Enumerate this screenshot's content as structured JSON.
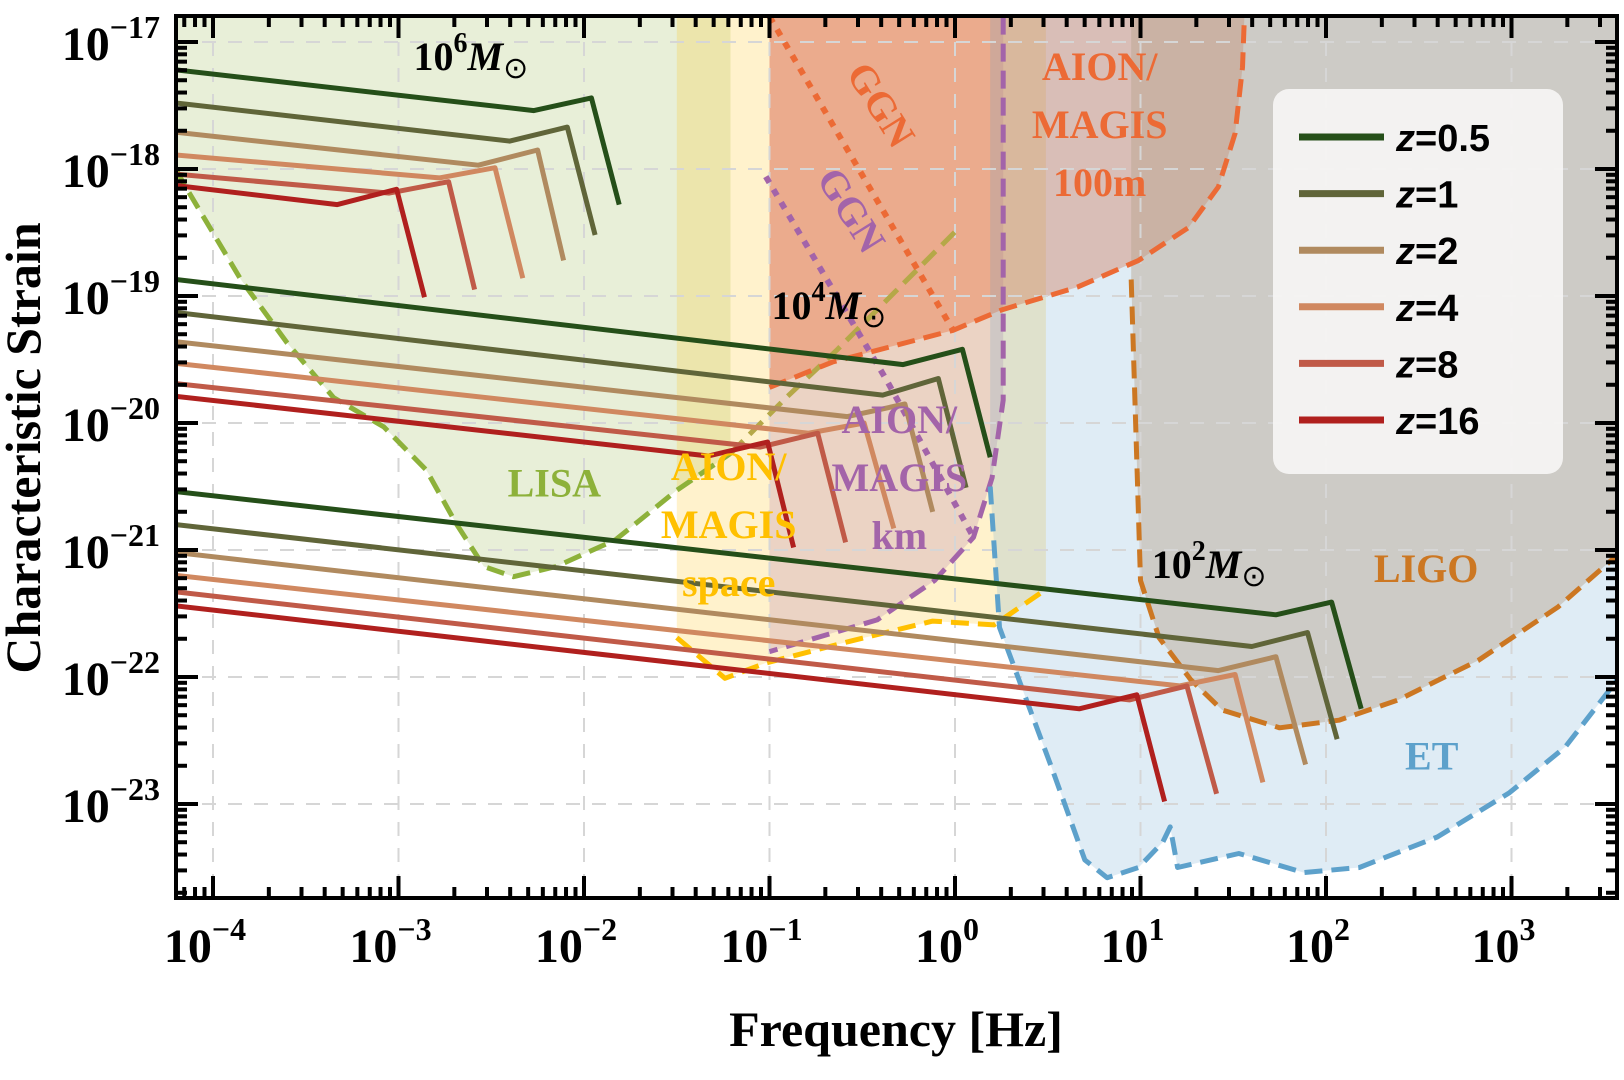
{
  "chart_data": {
    "type": "line",
    "title": "",
    "xlabel": "Frequency [Hz]",
    "ylabel": "Characteristic Strain",
    "xscale": "log",
    "yscale": "log",
    "xlim_log10": [
      -4.2,
      3.57
    ],
    "ylim_log10": [
      -23.74,
      -16.8
    ],
    "grid": true,
    "x_ticks": [
      {
        "exp": -4,
        "base": "10",
        "sup": "−4"
      },
      {
        "exp": -3,
        "base": "10",
        "sup": "−3"
      },
      {
        "exp": -2,
        "base": "10",
        "sup": "−2"
      },
      {
        "exp": -1,
        "base": "10",
        "sup": "−1"
      },
      {
        "exp": 0,
        "base": "10",
        "sup": "0"
      },
      {
        "exp": 1,
        "base": "10",
        "sup": "1"
      },
      {
        "exp": 2,
        "base": "10",
        "sup": "2"
      },
      {
        "exp": 3,
        "base": "10",
        "sup": "3"
      }
    ],
    "y_ticks": [
      {
        "exp": -17,
        "base": "10",
        "sup": "−17"
      },
      {
        "exp": -18,
        "base": "10",
        "sup": "−18"
      },
      {
        "exp": -19,
        "base": "10",
        "sup": "−19"
      },
      {
        "exp": -20,
        "base": "10",
        "sup": "−20"
      },
      {
        "exp": -21,
        "base": "10",
        "sup": "−21"
      },
      {
        "exp": -22,
        "base": "10",
        "sup": "−22"
      },
      {
        "exp": -23,
        "base": "10",
        "sup": "−23"
      }
    ],
    "legend": {
      "placement": "top-right",
      "entries": [
        {
          "label": "z = 0.5",
          "color": "#254f19"
        },
        {
          "label": "z = 1",
          "color": "#606539"
        },
        {
          "label": "z = 2",
          "color": "#b08a5f"
        },
        {
          "label": "z = 4",
          "color": "#d08860"
        },
        {
          "label": "z = 8",
          "color": "#c05a48"
        },
        {
          "label": "z = 16",
          "color": "#b0201e"
        }
      ]
    },
    "series_note": "points are [log10 f (Hz), log10 h_c]; each track = inspiral start, knee, merger peak, ringdown end",
    "series": [
      {
        "name": "1e6 Msun z=0.5",
        "mass": "10^6",
        "z": 0.5,
        "color": "#254f19",
        "points": [
          [
            -4.2,
            -17.22
          ],
          [
            -2.27,
            -17.54
          ],
          [
            -1.96,
            -17.44
          ],
          [
            -1.81,
            -18.28
          ]
        ]
      },
      {
        "name": "1e6 Msun z=1",
        "mass": "10^6",
        "z": 1,
        "color": "#606539",
        "points": [
          [
            -4.2,
            -17.48
          ],
          [
            -2.4,
            -17.78
          ],
          [
            -2.09,
            -17.67
          ],
          [
            -1.94,
            -18.52
          ]
        ]
      },
      {
        "name": "1e6 Msun z=2",
        "mass": "10^6",
        "z": 2,
        "color": "#b08a5f",
        "points": [
          [
            -4.2,
            -17.71
          ],
          [
            -2.57,
            -17.97
          ],
          [
            -2.25,
            -17.85
          ],
          [
            -2.11,
            -18.72
          ]
        ]
      },
      {
        "name": "1e6 Msun z=4",
        "mass": "10^6",
        "z": 4,
        "color": "#d08860",
        "points": [
          [
            -4.2,
            -17.89
          ],
          [
            -2.78,
            -18.07
          ],
          [
            -2.48,
            -17.99
          ],
          [
            -2.33,
            -18.86
          ]
        ]
      },
      {
        "name": "1e6 Msun z=8",
        "mass": "10^6",
        "z": 8,
        "color": "#c05a48",
        "points": [
          [
            -4.2,
            -18.04
          ],
          [
            -3.05,
            -18.19
          ],
          [
            -2.73,
            -18.1
          ],
          [
            -2.59,
            -18.95
          ]
        ]
      },
      {
        "name": "1e6 Msun z=16",
        "mass": "10^6",
        "z": 16,
        "color": "#b0201e",
        "points": [
          [
            -4.2,
            -18.13
          ],
          [
            -3.33,
            -18.28
          ],
          [
            -3.01,
            -18.16
          ],
          [
            -2.86,
            -19.01
          ]
        ]
      },
      {
        "name": "1e4 Msun z=0.5",
        "mass": "10^4",
        "z": 0.5,
        "color": "#254f19",
        "points": [
          [
            -4.2,
            -18.87
          ],
          [
            -0.28,
            -19.54
          ],
          [
            0.04,
            -19.42
          ],
          [
            0.19,
            -20.27
          ]
        ]
      },
      {
        "name": "1e4 Msun z=1",
        "mass": "10^4",
        "z": 1,
        "color": "#606539",
        "points": [
          [
            -4.2,
            -19.13
          ],
          [
            -0.39,
            -19.78
          ],
          [
            -0.09,
            -19.65
          ],
          [
            0.06,
            -20.51
          ]
        ]
      },
      {
        "name": "1e4 Msun z=2",
        "mass": "10^4",
        "z": 2,
        "color": "#b08a5f",
        "points": [
          [
            -4.2,
            -19.36
          ],
          [
            -0.58,
            -19.95
          ],
          [
            -0.27,
            -19.85
          ],
          [
            -0.12,
            -20.7
          ]
        ]
      },
      {
        "name": "1e4 Msun z=4",
        "mass": "10^4",
        "z": 4,
        "color": "#d08860",
        "points": [
          [
            -4.2,
            -19.53
          ],
          [
            -0.79,
            -20.08
          ],
          [
            -0.49,
            -20.0
          ],
          [
            -0.33,
            -20.83
          ]
        ]
      },
      {
        "name": "1e4 Msun z=8",
        "mass": "10^4",
        "z": 8,
        "color": "#c05a48",
        "points": [
          [
            -4.2,
            -19.69
          ],
          [
            -1.05,
            -20.19
          ],
          [
            -0.74,
            -20.08
          ],
          [
            -0.59,
            -20.94
          ]
        ]
      },
      {
        "name": "1e4 Msun z=16",
        "mass": "10^4",
        "z": 16,
        "color": "#b0201e",
        "points": [
          [
            -4.2,
            -19.79
          ],
          [
            -1.33,
            -20.26
          ],
          [
            -1.01,
            -20.15
          ],
          [
            -0.87,
            -20.98
          ]
        ]
      },
      {
        "name": "1e2 Msun z=0.5",
        "mass": "10^2",
        "z": 0.5,
        "color": "#254f19",
        "points": [
          [
            -4.2,
            -20.54
          ],
          [
            1.73,
            -21.51
          ],
          [
            2.03,
            -21.41
          ],
          [
            2.19,
            -22.25
          ]
        ]
      },
      {
        "name": "1e2 Msun z=1",
        "mass": "10^2",
        "z": 1,
        "color": "#606539",
        "points": [
          [
            -4.2,
            -20.8
          ],
          [
            1.6,
            -21.76
          ],
          [
            1.9,
            -21.65
          ],
          [
            2.06,
            -22.49
          ]
        ]
      },
      {
        "name": "1e2 Msun z=2",
        "mass": "10^2",
        "z": 2,
        "color": "#b08a5f",
        "points": [
          [
            -4.2,
            -21.02
          ],
          [
            1.42,
            -21.95
          ],
          [
            1.73,
            -21.84
          ],
          [
            1.89,
            -22.69
          ]
        ]
      },
      {
        "name": "1e2 Msun z=4",
        "mass": "10^2",
        "z": 4,
        "color": "#d08860",
        "points": [
          [
            -4.2,
            -21.2
          ],
          [
            1.21,
            -22.07
          ],
          [
            1.51,
            -21.98
          ],
          [
            1.66,
            -22.83
          ]
        ]
      },
      {
        "name": "1e2 Msun z=8",
        "mass": "10^2",
        "z": 8,
        "color": "#c05a48",
        "points": [
          [
            -4.2,
            -21.33
          ],
          [
            0.94,
            -22.18
          ],
          [
            1.25,
            -22.07
          ],
          [
            1.41,
            -22.92
          ]
        ]
      },
      {
        "name": "1e2 Msun z=16",
        "mass": "10^2",
        "z": 16,
        "color": "#b0201e",
        "points": [
          [
            -4.2,
            -21.44
          ],
          [
            0.67,
            -22.25
          ],
          [
            0.98,
            -22.14
          ],
          [
            1.13,
            -22.98
          ]
        ]
      }
    ],
    "detector_regions": [
      {
        "name": "LISA",
        "stroke": "#8db13a",
        "fill": "#8db13a",
        "fill_opacity": 0.2,
        "dash": "dash",
        "curve": [
          [
            -4.2,
            -18.0
          ],
          [
            -4.16,
            -18.11
          ],
          [
            -3.85,
            -18.87
          ],
          [
            -3.6,
            -19.37
          ],
          [
            -3.35,
            -19.8
          ],
          [
            -3.08,
            -20.03
          ],
          [
            -2.85,
            -20.37
          ],
          [
            -2.69,
            -20.79
          ],
          [
            -2.54,
            -21.13
          ],
          [
            -2.38,
            -21.21
          ],
          [
            -2.15,
            -21.13
          ],
          [
            -1.83,
            -20.92
          ],
          [
            -1.5,
            -20.53
          ],
          [
            -1.21,
            -20.24
          ]
        ],
        "fill_to": "top"
      },
      {
        "name": "AION/MAGIS space",
        "stroke": "#ffc000",
        "fill": "#ffc000",
        "fill_opacity": 0.2,
        "dash": "dash",
        "curve": [
          [
            -1.5,
            -21.69
          ],
          [
            -1.24,
            -22.01
          ],
          [
            -1.02,
            -21.89
          ],
          [
            -0.57,
            -21.72
          ],
          [
            -0.12,
            -21.56
          ],
          [
            0.21,
            -21.59
          ],
          [
            0.49,
            -21.31
          ]
        ],
        "fill_to": "top",
        "x_range": [
          -1.5,
          0.5
        ]
      },
      {
        "name": "AION/MAGIS space slope",
        "stroke": "#b5a848",
        "dash": "dash",
        "curve": [
          [
            -1.21,
            -20.24
          ],
          [
            -0.91,
            -19.8
          ],
          [
            -0.64,
            -19.43
          ],
          [
            0.01,
            -18.48
          ]
        ],
        "fill_to": "none"
      },
      {
        "name": "AION/MAGIS km",
        "stroke": "#a364a9",
        "fill": "#a364a9",
        "fill_opacity": 0.22,
        "dash": "dash",
        "curve": [
          [
            0.26,
            -16.8
          ],
          [
            0.26,
            -19.82
          ],
          [
            0.2,
            -20.43
          ],
          [
            0.1,
            -20.9
          ],
          [
            -0.11,
            -21.24
          ],
          [
            -0.42,
            -21.55
          ],
          [
            -1.0,
            -21.8
          ]
        ],
        "fill_to": "top",
        "x_range": [
          -1.0,
          0.26
        ]
      },
      {
        "name": "AION/MAGIS 100m",
        "stroke": "#ec6a35",
        "fill": "#ec6a35",
        "fill_opacity": 0.38,
        "dash": "dash",
        "curve": [
          [
            -1.0,
            -19.72
          ],
          [
            -0.66,
            -19.52
          ],
          [
            -0.01,
            -19.27
          ],
          [
            0.25,
            -19.11
          ],
          [
            0.66,
            -18.93
          ],
          [
            0.99,
            -18.72
          ],
          [
            1.26,
            -18.46
          ],
          [
            1.42,
            -18.14
          ],
          [
            1.51,
            -17.72
          ],
          [
            1.55,
            -17.2
          ],
          [
            1.56,
            -16.8
          ]
        ],
        "fill_to": "top"
      },
      {
        "name": "ET",
        "stroke": "#5da1cb",
        "fill": "#5da1cb",
        "fill_opacity": 0.2,
        "dash": "dash",
        "curve": [
          [
            0.19,
            -20.5
          ],
          [
            0.24,
            -21.61
          ],
          [
            0.52,
            -22.71
          ],
          [
            0.7,
            -23.44
          ],
          [
            0.82,
            -23.58
          ],
          [
            0.99,
            -23.5
          ],
          [
            1.12,
            -23.3
          ],
          [
            1.16,
            -23.18
          ],
          [
            1.2,
            -23.5
          ],
          [
            1.53,
            -23.39
          ],
          [
            1.88,
            -23.54
          ],
          [
            2.18,
            -23.5
          ],
          [
            2.6,
            -23.26
          ],
          [
            2.99,
            -22.91
          ],
          [
            3.29,
            -22.55
          ],
          [
            3.54,
            -22.08
          ],
          [
            3.57,
            -22.02
          ]
        ],
        "fill_to": "top"
      },
      {
        "name": "LIGO",
        "stroke": "#cc7722",
        "fill": "#b8a48f",
        "fill_opacity": 0.45,
        "dash": "dash",
        "curve": [
          [
            0.95,
            -18.87
          ],
          [
            1.0,
            -21.24
          ],
          [
            1.1,
            -21.69
          ],
          [
            1.27,
            -22.02
          ],
          [
            1.44,
            -22.26
          ],
          [
            1.75,
            -22.4
          ],
          [
            2.07,
            -22.34
          ],
          [
            2.39,
            -22.18
          ],
          [
            2.82,
            -21.87
          ],
          [
            3.25,
            -21.45
          ],
          [
            3.57,
            -21.04
          ]
        ],
        "fill_to": "top",
        "x_range": [
          0.95,
          3.57
        ]
      }
    ],
    "ggn_lines": [
      {
        "name": "GGN (100m)",
        "color": "#ec6a35",
        "points": [
          [
            -1.0,
            -16.8
          ],
          [
            -0.01,
            -19.27
          ]
        ]
      },
      {
        "name": "GGN (km)",
        "color": "#a364a9",
        "points": [
          [
            -1.02,
            -18.06
          ],
          [
            -0.37,
            -19.66
          ],
          [
            0.1,
            -20.9
          ]
        ]
      }
    ],
    "annotations": [
      {
        "id": "mass-1e6",
        "text": "10",
        "sup": "6",
        "italic": "M",
        "sym": "⊙",
        "x": -2.61,
        "y": -17.22,
        "color": "#000000"
      },
      {
        "id": "mass-1e4",
        "text": "10",
        "sup": "4",
        "italic": "M",
        "sym": "⊙",
        "x": -0.68,
        "y": -19.18,
        "color": "#000000"
      },
      {
        "id": "mass-1e2",
        "text": "10",
        "sup": "2",
        "italic": "M",
        "sym": "⊙",
        "x": 1.37,
        "y": -21.22,
        "color": "#000000"
      },
      {
        "id": "label-lisa",
        "lines": [
          "LISA"
        ],
        "x": -2.16,
        "y": -20.58,
        "color": "#8db13a"
      },
      {
        "id": "label-aion-space",
        "lines": [
          "AION/",
          "MAGIS",
          "space"
        ],
        "x": -1.22,
        "y": -20.45,
        "color": "#ffc000"
      },
      {
        "id": "label-aion-km",
        "lines": [
          "AION/",
          "MAGIS",
          "km"
        ],
        "x": -0.3,
        "y": -20.08,
        "color": "#a364a9"
      },
      {
        "id": "label-aion-100m",
        "lines": [
          "AION/",
          "MAGIS",
          "100m"
        ],
        "x": 0.78,
        "y": -17.3,
        "color": "#ec6a35"
      },
      {
        "id": "label-ggn-orange",
        "lines": [
          "GGN"
        ],
        "x": -0.46,
        "y": -17.55,
        "color": "#ec6a35",
        "rotate": 58
      },
      {
        "id": "label-ggn-purple",
        "lines": [
          "GGN"
        ],
        "x": -0.62,
        "y": -18.38,
        "color": "#a364a9",
        "rotate": 58
      },
      {
        "id": "label-ligo",
        "lines": [
          "LIGO"
        ],
        "x": 2.54,
        "y": -21.25,
        "color": "#cc7722"
      },
      {
        "id": "label-et",
        "lines": [
          "ET"
        ],
        "x": 2.57,
        "y": -22.73,
        "color": "#5da1cb"
      }
    ]
  }
}
